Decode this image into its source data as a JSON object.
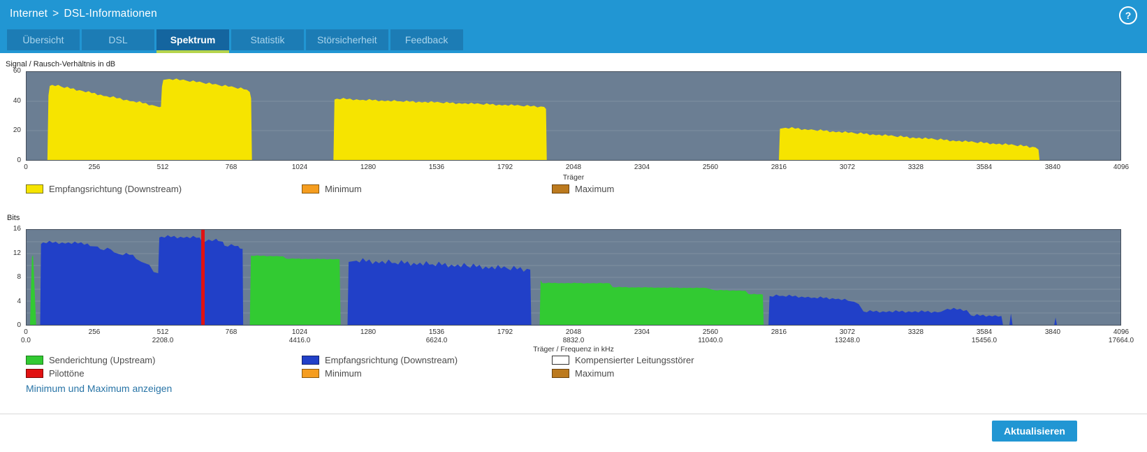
{
  "header": {
    "breadcrumb": {
      "section": "Internet",
      "separator": ">",
      "page": "DSL-Informationen"
    },
    "help_label": "?"
  },
  "tabs": [
    {
      "id": "uebersicht",
      "label": "Übersicht",
      "active": false
    },
    {
      "id": "dsl",
      "label": "DSL",
      "active": false
    },
    {
      "id": "spektrum",
      "label": "Spektrum",
      "active": true
    },
    {
      "id": "statistik",
      "label": "Statistik",
      "active": false
    },
    {
      "id": "stoersicherheit",
      "label": "Störsicherheit",
      "active": false
    },
    {
      "id": "feedback",
      "label": "Feedback",
      "active": false
    }
  ],
  "actions": {
    "show_min_max_link": "Minimum und Maximum anzeigen",
    "refresh_button": "Aktualisieren"
  },
  "colors": {
    "header_bg": "#2196d3",
    "tab_bg": "#1c7cb5",
    "tab_active_bg": "#14659f",
    "tab_active_underline": "#b5d44c",
    "button_bg": "#2196d3",
    "link": "#2874a6",
    "plot_bg": "#6b7e93",
    "grid": "#93a1b0",
    "downstream_snr_yellow": "#f6e400",
    "upstream_green": "#32ca32",
    "downstream_blue": "#2140c8",
    "pilot_red": "#e11212",
    "minimum_orange": "#f59d1f",
    "maximum_brown": "#bc7a1e"
  },
  "chart_data": [
    {
      "type": "area",
      "title": "Signal / Rausch-Verhältnis in dB",
      "xlabel": "Träger",
      "xlim": [
        0,
        4096
      ],
      "ylim": [
        0,
        60
      ],
      "xticks": [
        0,
        256,
        512,
        768,
        1024,
        1280,
        1536,
        1792,
        2048,
        2304,
        2560,
        2816,
        3072,
        3328,
        3584,
        3840,
        4096
      ],
      "yticks": [
        0,
        20,
        40,
        60
      ],
      "grid_y": [
        20,
        40
      ],
      "legend_position": "bottom",
      "series": [
        {
          "name": "Empfangsrichtung (Downstream)",
          "color": "#f6e400",
          "bands": [
            {
              "jitter": 0.9,
              "points": [
                [
                  78,
                  0
                ],
                [
                  82,
                  44
                ],
                [
                  87,
                  50.5
                ],
                [
                  96,
                  51.2
                ],
                [
                  130,
                  50
                ],
                [
                  210,
                  47
                ],
                [
                  300,
                  43.5
                ],
                [
                  400,
                  40
                ],
                [
                  470,
                  37.5
                ],
                [
                  497,
                  36
                ],
                [
                  503,
                  36.3
                ],
                [
                  507,
                  50
                ],
                [
                  512,
                  54.6
                ],
                [
                  535,
                  55.2
                ],
                [
                  600,
                  54
                ],
                [
                  660,
                  52.6
                ],
                [
                  720,
                  51
                ],
                [
                  780,
                  49.4
                ],
                [
                  825,
                  47.9
                ],
                [
                  836,
                  46.3
                ],
                [
                  841,
                  42
                ],
                [
                  844,
                  0
                ]
              ]
            },
            {
              "jitter": 0.8,
              "points": [
                [
                  1149,
                  0
                ],
                [
                  1153,
                  41.2
                ],
                [
                  1162,
                  41.8
                ],
                [
                  1260,
                  41
                ],
                [
                  1400,
                  40
                ],
                [
                  1550,
                  39.1
                ],
                [
                  1700,
                  38.1
                ],
                [
                  1850,
                  37
                ],
                [
                  1938,
                  36.2
                ],
                [
                  1945,
                  34.8
                ],
                [
                  1948,
                  0
                ]
              ]
            },
            {
              "jitter": 0.9,
              "points": [
                [
                  2817,
                  0
                ],
                [
                  2821,
                  21.3
                ],
                [
                  2842,
                  22
                ],
                [
                  2950,
                  20.4
                ],
                [
                  3100,
                  18.3
                ],
                [
                  3250,
                  16.2
                ],
                [
                  3400,
                  14.1
                ],
                [
                  3550,
                  12.1
                ],
                [
                  3700,
                  10.1
                ],
                [
                  3778,
                  8.6
                ],
                [
                  3789,
                  7.1
                ],
                [
                  3793,
                  0
                ]
              ]
            }
          ]
        }
      ],
      "legend_rows": [
        [
          {
            "label": "Empfangsrichtung (Downstream)",
            "color": "#f6e400",
            "border": "#77761f"
          },
          {
            "label": "Minimum",
            "color": "#f59d1f",
            "border": "#8a5a10"
          },
          {
            "label": "Maximum",
            "color": "#bc7a1e",
            "border": "#6b4410"
          }
        ]
      ]
    },
    {
      "type": "area",
      "title": "Bits",
      "xlabel": "Träger / Frequenz in kHz",
      "xlim": [
        0,
        4096
      ],
      "ylim": [
        0,
        16
      ],
      "xticks": [
        0,
        256,
        512,
        768,
        1024,
        1280,
        1536,
        1792,
        2048,
        2304,
        2560,
        2816,
        3072,
        3328,
        3584,
        3840,
        4096
      ],
      "yticks": [
        0,
        4,
        8,
        12,
        16
      ],
      "grid_y": [
        2,
        4,
        6,
        8,
        10,
        12,
        14
      ],
      "freq_ticks": [
        {
          "at": 0,
          "label": "0.0"
        },
        {
          "at": 512,
          "label": "2208.0"
        },
        {
          "at": 1024,
          "label": "4416.0"
        },
        {
          "at": 1536,
          "label": "6624.0"
        },
        {
          "at": 2048,
          "label": "8832.0"
        },
        {
          "at": 2560,
          "label": "11040.0"
        },
        {
          "at": 3072,
          "label": "13248.0"
        },
        {
          "at": 3584,
          "label": "15456.0"
        },
        {
          "at": 4096,
          "label": "17664.0"
        }
      ],
      "series": [
        {
          "name": "Senderichtung (Upstream)",
          "color": "#32ca32",
          "bands": [
            {
              "jitter": 0,
              "points": [
                [
                  13,
                  0
                ],
                [
                  16,
                  5
                ],
                [
                  20,
                  11.3
                ],
                [
                  24,
                  11.8
                ],
                [
                  27,
                  9.5
                ],
                [
                  32,
                  4
                ],
                [
                  36,
                  0
                ]
              ]
            },
            {
              "jitter": 0.08,
              "points": [
                [
                  836,
                  0
                ],
                [
                  840,
                  11.65
                ],
                [
                  960,
                  11.55
                ],
                [
                  972,
                  11.15
                ],
                [
                  1172,
                  11.05
                ],
                [
                  1176,
                  0
                ]
              ]
            },
            {
              "jitter": 0.08,
              "points": [
                [
                  1921,
                  0
                ],
                [
                  1925,
                  7.55
                ],
                [
                  1931,
                  7.05
                ],
                [
                  2183,
                  7.0
                ],
                [
                  2195,
                  6.35
                ],
                [
                  2545,
                  6.2
                ],
                [
                  2575,
                  5.85
                ],
                [
                  2692,
                  5.75
                ],
                [
                  2703,
                  5.2
                ],
                [
                  2757,
                  5.1
                ],
                [
                  2760,
                  0
                ]
              ]
            }
          ]
        },
        {
          "name": "Empfangsrichtung (Downstream)",
          "color": "#2140c8",
          "bands": [
            {
              "jitter": 0.3,
              "points": [
                [
                  51,
                  0
                ],
                [
                  54,
                  13.6
                ],
                [
                  62,
                  13.9
                ],
                [
                  228,
                  13.7
                ],
                [
                  238,
                  13.25
                ],
                [
                  266,
                  13.2
                ],
                [
                  276,
                  12.75
                ],
                [
                  316,
                  12.7
                ],
                [
                  328,
                  12.2
                ],
                [
                  348,
                  11.9
                ],
                [
                  398,
                  11.8
                ],
                [
                  410,
                  11.1
                ],
                [
                  430,
                  10.6
                ],
                [
                  460,
                  10.1
                ],
                [
                  476,
                  8.9
                ],
                [
                  493,
                  8.7
                ],
                [
                  497,
                  14.7
                ],
                [
                  505,
                  14.85
                ],
                [
                  648,
                  14.7
                ],
                [
                  655,
                  14.15
                ],
                [
                  695,
                  14.1
                ],
                [
                  710,
                  14.5
                ],
                [
                  718,
                  14.1
                ],
                [
                  735,
                  14.0
                ],
                [
                  741,
                  13.35
                ],
                [
                  792,
                  13.3
                ],
                [
                  799,
                  12.85
                ],
                [
                  809,
                  12.8
                ],
                [
                  811,
                  0
                ]
              ]
            },
            {
              "jitter": 0.55,
              "points": [
                [
                  1202,
                  0
                ],
                [
                  1206,
                  10.6
                ],
                [
                  1235,
                  10.8
                ],
                [
                  1380,
                  10.45
                ],
                [
                  1520,
                  10.2
                ],
                [
                  1650,
                  9.9
                ],
                [
                  1800,
                  9.5
                ],
                [
                  1886,
                  9.3
                ],
                [
                  1890,
                  0
                ]
              ]
            },
            {
              "jitter": 0.25,
              "points": [
                [
                  2778,
                  0
                ],
                [
                  2782,
                  4.85
                ],
                [
                  2832,
                  4.9
                ],
                [
                  2950,
                  4.6
                ],
                [
                  3040,
                  4.4
                ],
                [
                  3076,
                  4.05
                ],
                [
                  3098,
                  3.9
                ],
                [
                  3116,
                  3.5
                ],
                [
                  3134,
                  2.25
                ],
                [
                  3424,
                  2.2
                ],
                [
                  3448,
                  2.7
                ],
                [
                  3520,
                  2.5
                ],
                [
                  3536,
                  1.6
                ],
                [
                  3650,
                  1.5
                ],
                [
                  3656,
                  0
                ]
              ]
            },
            {
              "jitter": 0,
              "points": [
                [
                  3680,
                  0
                ],
                [
                  3686,
                  1.9
                ],
                [
                  3692,
                  0
                ]
              ]
            },
            {
              "jitter": 0,
              "points": [
                [
                  3848,
                  0
                ],
                [
                  3853,
                  1.25
                ],
                [
                  3858,
                  0
                ]
              ]
            }
          ]
        },
        {
          "name": "Pilottöne",
          "color": "#e11212",
          "vlines": [
            {
              "from": 654,
              "to": 667
            }
          ]
        }
      ],
      "legend_rows": [
        [
          {
            "label": "Senderichtung (Upstream)",
            "color": "#32ca32",
            "border": "#1b7a1b"
          },
          {
            "label": "Empfangsrichtung (Downstream)",
            "color": "#2140c8",
            "border": "#12246e"
          },
          {
            "label": "Kompensierter Leitungsstörer",
            "color": "#ffffff",
            "border": "#333333"
          }
        ],
        [
          {
            "label": "Pilottöne",
            "color": "#e11212",
            "border": "#7a0808"
          },
          {
            "label": "Minimum",
            "color": "#f59d1f",
            "border": "#8a5a10"
          },
          {
            "label": "Maximum",
            "color": "#bc7a1e",
            "border": "#6b4410"
          }
        ]
      ]
    }
  ]
}
